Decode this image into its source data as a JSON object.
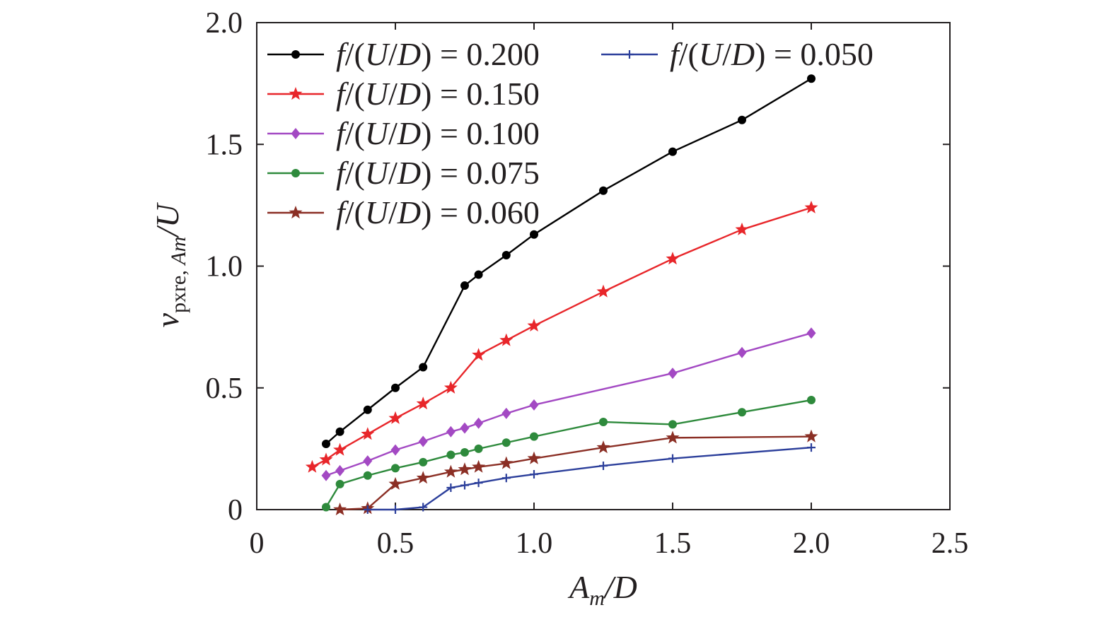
{
  "chart_data": {
    "type": "line",
    "title": "",
    "xlabel": {
      "main": "A",
      "sub": "m",
      "suffix": "/D"
    },
    "ylabel": {
      "main": "v",
      "sub_roman": "pxre, ",
      "sub_italic": "Am",
      "suffix": "/U"
    },
    "xlim": [
      0,
      2.5
    ],
    "ylim": [
      0,
      2.0
    ],
    "x_ticks": [
      0,
      0.5,
      1.0,
      1.5,
      2.0,
      2.5
    ],
    "x_tick_labels": [
      "0",
      "0.5",
      "1.0",
      "1.5",
      "2.0",
      "2.5"
    ],
    "y_ticks": [
      0,
      0.5,
      1.0,
      1.5,
      2.0
    ],
    "y_tick_labels": [
      "0",
      "0.5",
      "1.0",
      "1.5",
      "2.0"
    ],
    "grid": false,
    "legend_position": "top-left",
    "series": [
      {
        "name": "f/(U/D) = 0.200",
        "label_italic": "f",
        "label_mid": "/(",
        "label_italic2": "U",
        "label_slash": "/",
        "label_italic3": "D",
        "label_rest": ") = 0.200",
        "color": "#000000",
        "marker": "circle",
        "x": [
          0.25,
          0.3,
          0.4,
          0.5,
          0.6,
          0.75,
          0.8,
          0.9,
          1.0,
          1.25,
          1.5,
          1.75,
          2.0
        ],
        "y": [
          0.27,
          0.32,
          0.41,
          0.5,
          0.585,
          0.92,
          0.965,
          1.045,
          1.13,
          1.31,
          1.47,
          1.6,
          1.77
        ]
      },
      {
        "name": "f/(U/D) = 0.150",
        "label_italic": "f",
        "label_mid": "/(",
        "label_italic2": "U",
        "label_slash": "/",
        "label_italic3": "D",
        "label_rest": ") = 0.150",
        "color": "#e8262a",
        "marker": "star",
        "x": [
          0.2,
          0.25,
          0.3,
          0.4,
          0.5,
          0.6,
          0.7,
          0.8,
          0.9,
          1.0,
          1.25,
          1.5,
          1.75,
          2.0
        ],
        "y": [
          0.175,
          0.205,
          0.245,
          0.31,
          0.375,
          0.435,
          0.5,
          0.635,
          0.695,
          0.755,
          0.895,
          1.03,
          1.15,
          1.24
        ]
      },
      {
        "name": "f/(U/D) = 0.100",
        "label_italic": "f",
        "label_mid": "/(",
        "label_italic2": "U",
        "label_slash": "/",
        "label_italic3": "D",
        "label_rest": ") = 0.100",
        "color": "#a349c3",
        "marker": "diamond",
        "x": [
          0.25,
          0.3,
          0.4,
          0.5,
          0.6,
          0.7,
          0.75,
          0.8,
          0.9,
          1.0,
          1.5,
          1.75,
          2.0
        ],
        "y": [
          0.14,
          0.16,
          0.2,
          0.245,
          0.28,
          0.32,
          0.335,
          0.355,
          0.395,
          0.43,
          0.56,
          0.645,
          0.725
        ]
      },
      {
        "name": "f/(U/D) = 0.075",
        "label_italic": "f",
        "label_mid": "/(",
        "label_italic2": "U",
        "label_slash": "/",
        "label_italic3": "D",
        "label_rest": ") = 0.075",
        "color": "#2e8a3c",
        "marker": "circle",
        "x": [
          0.25,
          0.3,
          0.4,
          0.5,
          0.6,
          0.7,
          0.75,
          0.8,
          0.9,
          1.0,
          1.25,
          1.5,
          1.75,
          2.0
        ],
        "y": [
          0.01,
          0.105,
          0.14,
          0.17,
          0.195,
          0.225,
          0.235,
          0.25,
          0.275,
          0.3,
          0.36,
          0.35,
          0.4,
          0.45
        ]
      },
      {
        "name": "f/(U/D) = 0.060",
        "label_italic": "f",
        "label_mid": "/(",
        "label_italic2": "U",
        "label_slash": "/",
        "label_italic3": "D",
        "label_rest": ") = 0.060",
        "color": "#8b2f25",
        "marker": "star",
        "x": [
          0.3,
          0.4,
          0.5,
          0.6,
          0.7,
          0.75,
          0.8,
          0.9,
          1.0,
          1.25,
          1.5,
          2.0
        ],
        "y": [
          0.0,
          0.005,
          0.105,
          0.13,
          0.155,
          0.165,
          0.175,
          0.19,
          0.21,
          0.255,
          0.295,
          0.3
        ]
      },
      {
        "name": "f/(U/D) = 0.050",
        "label_italic": "f",
        "label_mid": "/(",
        "label_italic2": "U",
        "label_slash": "/",
        "label_italic3": "D",
        "label_rest": ") = 0.050",
        "color": "#2c3f9b",
        "marker": "plus",
        "x": [
          0.4,
          0.5,
          0.6,
          0.7,
          0.75,
          0.8,
          0.9,
          1.0,
          1.25,
          1.5,
          2.0
        ],
        "y": [
          0.0,
          0.0,
          0.01,
          0.09,
          0.1,
          0.11,
          0.13,
          0.145,
          0.18,
          0.21,
          0.255
        ]
      }
    ]
  }
}
